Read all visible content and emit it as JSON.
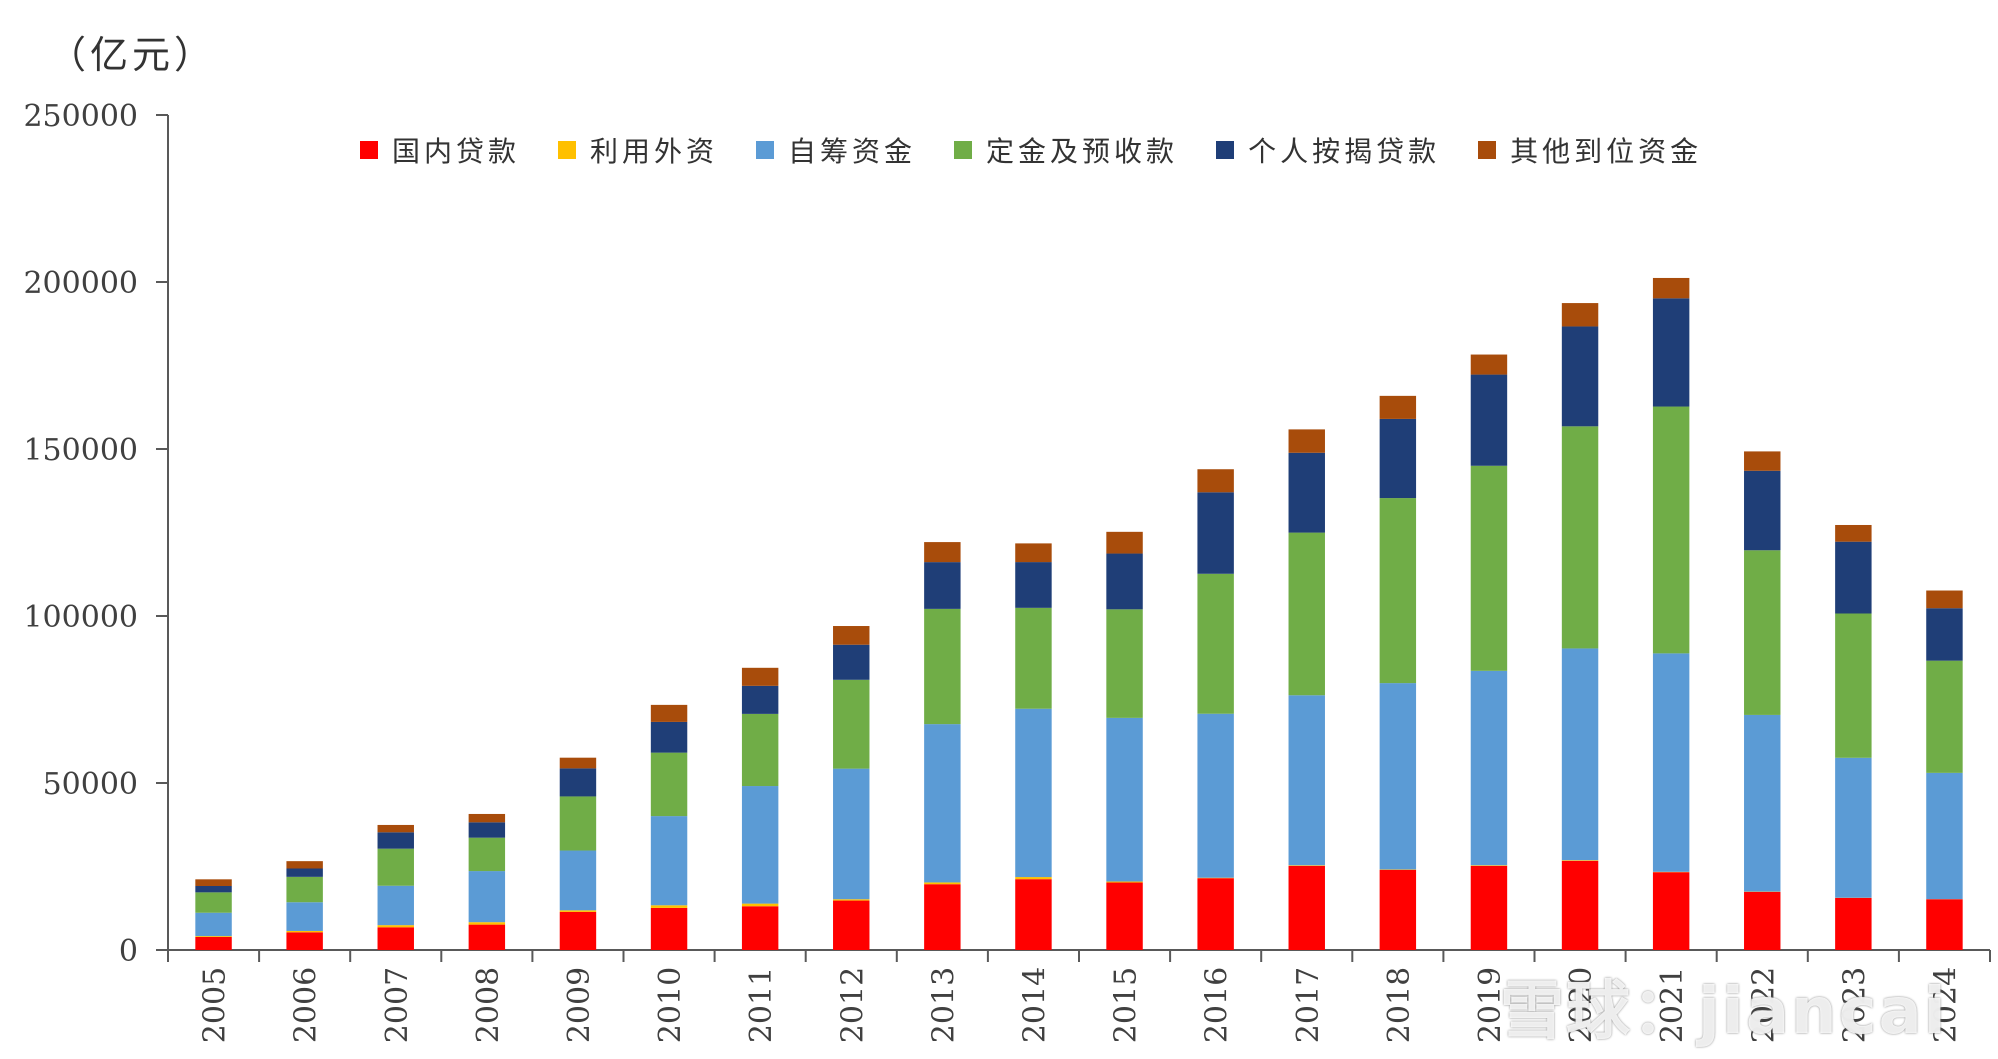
{
  "chart_data": {
    "type": "bar",
    "stacked": true,
    "unit_label": "（亿元）",
    "ylim": [
      0,
      250000
    ],
    "yticks": [
      0,
      50000,
      100000,
      150000,
      200000,
      250000
    ],
    "ytick_labels": [
      "0",
      "50000",
      "100000",
      "150000",
      "200000",
      "250000"
    ],
    "categories": [
      "2005",
      "2006",
      "2007",
      "2008",
      "2009",
      "2010",
      "2011",
      "2012",
      "2013",
      "2014",
      "2015",
      "2016",
      "2017",
      "2018",
      "2019",
      "2020",
      "2021",
      "2022",
      "2023",
      "2024"
    ],
    "series": [
      {
        "name": "国内贷款",
        "color": "#ff0000",
        "values": [
          3900,
          5300,
          6800,
          7600,
          11400,
          12600,
          13100,
          14800,
          19700,
          21200,
          20200,
          21500,
          25200,
          24000,
          25200,
          26700,
          23300,
          17400,
          15600,
          15200
        ]
      },
      {
        "name": "利用外资",
        "color": "#ffc000",
        "values": [
          260,
          400,
          640,
          730,
          480,
          790,
          790,
          400,
          530,
          640,
          300,
          140,
          170,
          110,
          180,
          190,
          110,
          80,
          50,
          30
        ]
      },
      {
        "name": "自筹资金",
        "color": "#5b9bd5",
        "values": [
          7000,
          8600,
          11800,
          15300,
          17900,
          26700,
          35200,
          39100,
          47400,
          50400,
          49000,
          49100,
          50900,
          55800,
          58200,
          63400,
          65400,
          52900,
          41900,
          37800
        ]
      },
      {
        "name": "定金及预收款",
        "color": "#70ad47",
        "values": [
          6100,
          7600,
          11100,
          10000,
          16200,
          19000,
          21600,
          26600,
          34500,
          30200,
          32500,
          41900,
          48700,
          55400,
          61400,
          66500,
          73900,
          49300,
          43200,
          33600
        ]
      },
      {
        "name": "个人按揭贷款",
        "color": "#1f3e77",
        "values": [
          1900,
          2500,
          4900,
          4600,
          8400,
          9200,
          8400,
          10500,
          14000,
          13700,
          16700,
          24400,
          23900,
          23700,
          27300,
          29900,
          32400,
          23800,
          21500,
          15700
        ]
      },
      {
        "name": "其他到位资金",
        "color": "#a84c0b",
        "values": [
          2000,
          2200,
          2200,
          2500,
          3200,
          5100,
          5400,
          5600,
          6000,
          5600,
          6500,
          6900,
          7000,
          6900,
          6000,
          7000,
          6100,
          5800,
          5000,
          5300
        ]
      }
    ]
  },
  "watermark": "雪球：jiancai"
}
